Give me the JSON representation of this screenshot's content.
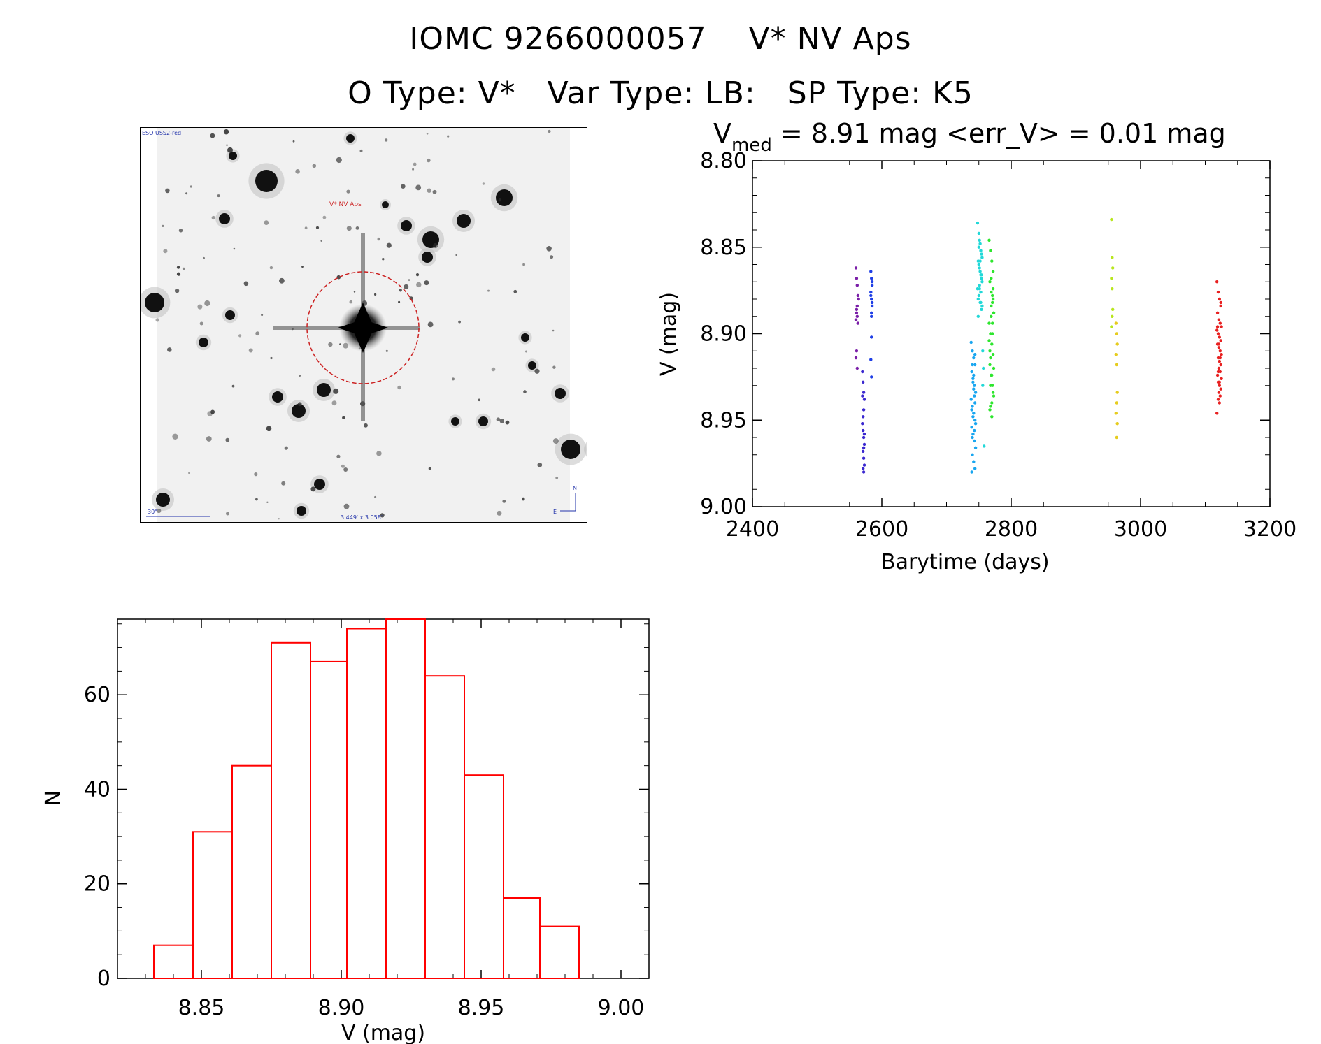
{
  "header": {
    "line1": "IOMC 9266000057    V* NV Aps",
    "line2": "O Type: V*   Var Type: LB:   SP Type: K5"
  },
  "finder_chart": {
    "survey_label": "ESO USS2-red",
    "target_label": "V* NV Aps",
    "scale_label": "30\"",
    "size_label": "3.449' x 3.058'",
    "north_label": "N",
    "east_label": "E",
    "circle_color": "#cc2222",
    "label_color": "#2233aa"
  },
  "chart_data": [
    {
      "type": "scatter",
      "title_main": "V",
      "title_sub": "med",
      "title_rest": " = 8.91 mag <err_V> = 0.01 mag",
      "xlabel": "Barytime (days)",
      "ylabel": "V (mag)",
      "xlim": [
        2400,
        3200
      ],
      "ylim": [
        8.8,
        9.0
      ],
      "y_inverted": true,
      "xticks": [
        "2400",
        "2600",
        "2800",
        "3000",
        "3200"
      ],
      "yticks": [
        "8.80",
        "8.85",
        "8.90",
        "8.95",
        "9.00"
      ],
      "series": [
        {
          "color": "#7a1ea8",
          "x": [
            2560,
            2561,
            2562,
            2563,
            2562,
            2561,
            2560,
            2561,
            2562,
            2563,
            2564,
            2561,
            2560,
            2562
          ],
          "y": [
            8.862,
            8.868,
            8.872,
            8.878,
            8.884,
            8.888,
            8.892,
            8.886,
            8.89,
            8.894,
            8.88,
            8.91,
            8.914,
            8.92
          ]
        },
        {
          "color": "#3b28d0",
          "x": [
            2570,
            2571,
            2572,
            2573,
            2572,
            2571,
            2570,
            2571,
            2572,
            2573,
            2572,
            2571,
            2572,
            2573,
            2571,
            2572,
            2570,
            2573
          ],
          "y": [
            8.922,
            8.928,
            8.934,
            8.938,
            8.944,
            8.948,
            8.952,
            8.956,
            8.96,
            8.964,
            8.966,
            8.968,
            8.972,
            8.976,
            8.978,
            8.98,
            8.936,
            8.958
          ]
        },
        {
          "color": "#1f3fe6",
          "x": [
            2583,
            2584,
            2585,
            2583,
            2584,
            2585,
            2584,
            2583,
            2585,
            2584,
            2583,
            2584,
            2585,
            2584
          ],
          "y": [
            8.864,
            8.868,
            8.872,
            8.876,
            8.88,
            8.884,
            8.888,
            8.878,
            8.882,
            8.902,
            8.915,
            8.925,
            8.87,
            8.89
          ]
        },
        {
          "color": "#19a6f0",
          "x": [
            2738,
            2740,
            2742,
            2744,
            2739,
            2741,
            2743,
            2745,
            2738,
            2740,
            2742,
            2744,
            2739,
            2741,
            2743,
            2745,
            2740,
            2742,
            2744,
            2741,
            2743,
            2739,
            2745,
            2740,
            2742,
            2744,
            2741,
            2743,
            2740,
            2742,
            2744,
            2739
          ],
          "y": [
            8.905,
            8.91,
            8.914,
            8.918,
            8.922,
            8.926,
            8.93,
            8.934,
            8.938,
            8.942,
            8.946,
            8.95,
            8.954,
            8.958,
            8.962,
            8.966,
            8.97,
            8.974,
            8.978,
            8.928,
            8.936,
            8.944,
            8.952,
            8.96,
            8.932,
            8.94,
            8.948,
            8.956,
            8.918,
            8.924,
            8.912,
            8.98
          ]
        },
        {
          "color": "#22d8d8",
          "x": [
            2748,
            2750,
            2752,
            2754,
            2749,
            2751,
            2753,
            2755,
            2748,
            2750,
            2752,
            2754,
            2749,
            2751,
            2753,
            2755,
            2750,
            2752,
            2754,
            2751,
            2753,
            2749,
            2755,
            2750,
            2752,
            2754,
            2751,
            2753,
            2756,
            2757,
            2756,
            2758
          ],
          "y": [
            8.836,
            8.842,
            8.848,
            8.854,
            8.858,
            8.862,
            8.866,
            8.87,
            8.874,
            8.878,
            8.882,
            8.886,
            8.89,
            8.846,
            8.852,
            8.856,
            8.86,
            8.864,
            8.868,
            8.872,
            8.876,
            8.88,
            8.884,
            8.85,
            8.858,
            8.866,
            8.874,
            8.882,
            8.91,
            8.92,
            8.93,
            8.965
          ]
        },
        {
          "color": "#2ee62e",
          "x": [
            2766,
            2768,
            2770,
            2772,
            2767,
            2769,
            2771,
            2773,
            2766,
            2768,
            2770,
            2772,
            2767,
            2769,
            2771,
            2773,
            2768,
            2770,
            2772,
            2769,
            2771,
            2767,
            2773,
            2768,
            2770,
            2772,
            2769,
            2771,
            2766,
            2768,
            2770,
            2772,
            2767,
            2769,
            2771,
            2773
          ],
          "y": [
            8.846,
            8.852,
            8.858,
            8.864,
            8.87,
            8.876,
            8.882,
            8.888,
            8.894,
            8.9,
            8.906,
            8.912,
            8.918,
            8.924,
            8.93,
            8.936,
            8.942,
            8.948,
            8.88,
            8.89,
            8.9,
            8.91,
            8.92,
            8.93,
            8.94,
            8.874,
            8.884,
            8.894,
            8.904,
            8.914,
            8.924,
            8.934,
            8.944,
            8.868,
            8.878,
            8.888
          ]
        },
        {
          "color": "#b8e61e",
          "x": [
            2955,
            2956,
            2957,
            2955,
            2956,
            2957,
            2956,
            2955
          ],
          "y": [
            8.834,
            8.856,
            8.862,
            8.868,
            8.874,
            8.886,
            8.89,
            8.896
          ]
        },
        {
          "color": "#e6cc1e",
          "x": [
            2962,
            2963,
            2964,
            2962,
            2963,
            2964,
            2963,
            2962,
            2964,
            2963
          ],
          "y": [
            8.894,
            8.9,
            8.906,
            8.912,
            8.918,
            8.934,
            8.94,
            8.946,
            8.952,
            8.96
          ]
        },
        {
          "color": "#e82020",
          "x": [
            3118,
            3120,
            3122,
            3124,
            3119,
            3121,
            3123,
            3125,
            3118,
            3120,
            3122,
            3124,
            3119,
            3121,
            3123,
            3125,
            3120,
            3122,
            3124,
            3121,
            3123,
            3119,
            3125,
            3120,
            3122,
            3124,
            3121,
            3123,
            3120,
            3122,
            3124,
            3119,
            3121,
            3123,
            3120,
            3122,
            3118
          ],
          "y": [
            8.87,
            8.876,
            8.88,
            8.884,
            8.888,
            8.892,
            8.894,
            8.896,
            8.898,
            8.9,
            8.902,
            8.904,
            8.906,
            8.908,
            8.91,
            8.912,
            8.914,
            8.916,
            8.918,
            8.92,
            8.922,
            8.924,
            8.926,
            8.928,
            8.93,
            8.932,
            8.934,
            8.936,
            8.938,
            8.94,
            8.882,
            8.896,
            8.906,
            8.914,
            8.922,
            8.928,
            8.946
          ]
        }
      ]
    },
    {
      "type": "bar",
      "title": "",
      "xlabel": "V (mag)",
      "ylabel": "N",
      "xlim": [
        8.82,
        9.01
      ],
      "ylim": [
        0,
        76
      ],
      "bar_color": "#ff0000",
      "xticks": [
        "8.85",
        "8.90",
        "8.95",
        "9.00"
      ],
      "yticks": [
        "0",
        "20",
        "40",
        "60"
      ],
      "bin_edges": [
        8.833,
        8.847,
        8.861,
        8.875,
        8.889,
        8.902,
        8.916,
        8.93,
        8.944,
        8.958,
        8.971,
        8.985
      ],
      "values": [
        7,
        31,
        45,
        71,
        67,
        74,
        76,
        64,
        43,
        17,
        11
      ]
    }
  ]
}
